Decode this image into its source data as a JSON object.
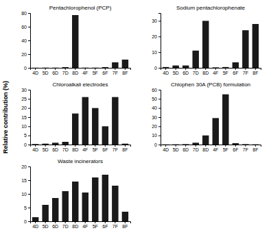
{
  "chart_data": [
    {
      "type": "bar",
      "title": "Pentachlorophenol (PCP)",
      "categories": [
        "4D",
        "5D",
        "6D",
        "7D",
        "8D",
        "4F",
        "5F",
        "6F",
        "7F",
        "8F"
      ],
      "values": [
        0.2,
        0.3,
        0.3,
        1.0,
        77,
        0.3,
        0.3,
        1.0,
        8,
        12
      ],
      "color": "#1a1a1a",
      "ylim": [
        0,
        80
      ],
      "yticks": [
        0,
        20,
        40,
        60,
        80
      ]
    },
    {
      "type": "bar",
      "title": "Sodium pentachlorophenate",
      "categories": [
        "4D",
        "5D",
        "6D",
        "7D",
        "8D",
        "4F",
        "5F",
        "6F",
        "7F",
        "8F"
      ],
      "values": [
        0.5,
        1.5,
        1.5,
        11,
        30,
        0.3,
        0.5,
        3.5,
        24,
        28
      ],
      "color": "#1a1a1a",
      "ylim": [
        0,
        35
      ],
      "yticks": [
        0,
        10,
        20,
        30
      ]
    },
    {
      "type": "bar",
      "title": "Chloroalkali electrodes",
      "ylabel": "Relative contribution (%)",
      "categories": [
        "4D",
        "5D",
        "6D",
        "7D",
        "8D",
        "4F",
        "5F",
        "6F",
        "7F",
        "8F"
      ],
      "values": [
        0.3,
        0.5,
        1.0,
        1.5,
        17,
        26,
        20,
        10,
        26,
        0.5
      ],
      "color": "#1a1a1a",
      "ylim": [
        0,
        30
      ],
      "yticks": [
        0,
        5,
        10,
        15,
        20,
        25,
        30
      ]
    },
    {
      "type": "bar",
      "title": "Chlophen 30A (PCB) formulation",
      "categories": [
        "4D",
        "5D",
        "6D",
        "7D",
        "8D",
        "4F",
        "5F",
        "6F",
        "7F",
        "8F"
      ],
      "values": [
        0.2,
        0.3,
        0.5,
        2,
        10,
        29,
        55,
        1.5,
        0.5,
        0.3
      ],
      "color": "#1a1a1a",
      "ylim": [
        0,
        60
      ],
      "yticks": [
        0,
        10,
        20,
        30,
        40,
        50,
        60
      ]
    },
    {
      "type": "bar",
      "title": "Waste incinerators",
      "categories": [
        "4D",
        "5D",
        "6D",
        "7D",
        "8D",
        "4F",
        "5F",
        "6F",
        "7F",
        "8F"
      ],
      "values": [
        1.5,
        6,
        8.5,
        11,
        14.5,
        10.5,
        16,
        17,
        13,
        3.5
      ],
      "color": "#1a1a1a",
      "ylim": [
        0,
        20
      ],
      "yticks": [
        0,
        5,
        10,
        15,
        20
      ]
    }
  ]
}
